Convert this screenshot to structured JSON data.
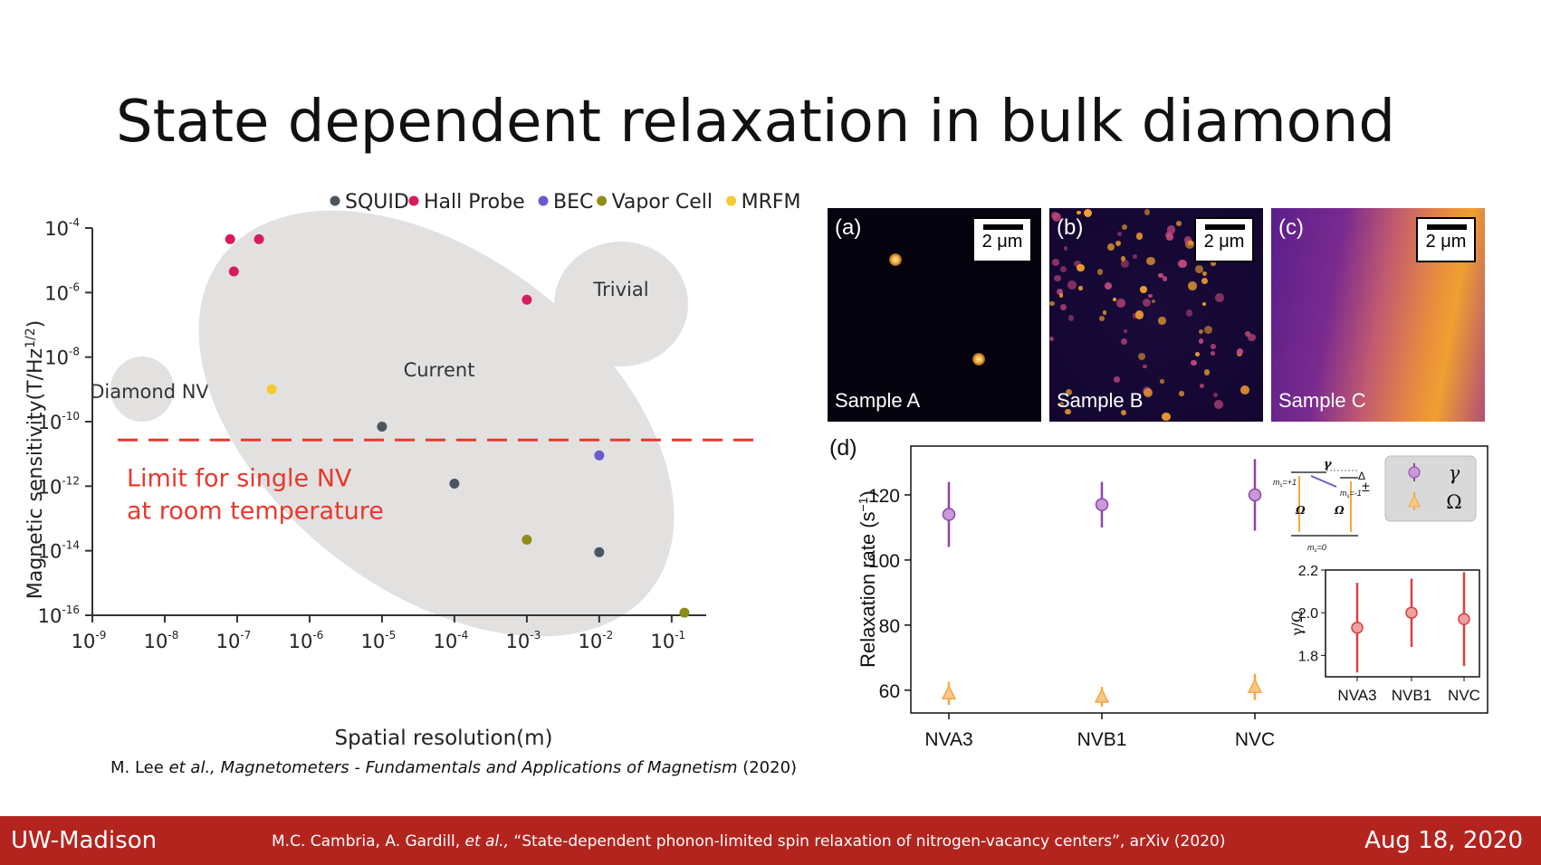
{
  "slide": {
    "title": "State dependent relaxation in bulk diamond",
    "left_citation_authors": "M. Lee ",
    "left_citation_etal": "et al., Magnetometers - Fundamentals and Applications of Magnetism",
    "left_citation_year": " (2020)"
  },
  "footer": {
    "left": "UW-Madison",
    "mid_prefix": "M.C. Cambria, A. Gardill, ",
    "mid_etal": "et al.,",
    "mid_suffix": " “State-dependent phonon-limited spin relaxation of nitrogen-vacancy centers”, arXiv (2020)",
    "right": "Aug 18, 2020"
  },
  "chart_data": [
    {
      "type": "scatter",
      "title": "",
      "xlabel": "Spatial resolution(m)",
      "ylabel": "Magnetic sensitivity(T/Hz",
      "ylabel_sup": "1/2",
      "ylabel_close": ")",
      "x_scale": "log",
      "y_scale": "log",
      "xlim": [
        1e-09,
        0.3
      ],
      "ylim": [
        1e-16,
        0.0001
      ],
      "x_tick_base": "10",
      "x_tick_exponents": [
        "-9",
        "-8",
        "-7",
        "-6",
        "-5",
        "-4",
        "-3",
        "-2",
        "-1"
      ],
      "y_tick_base": "10",
      "y_tick_exponents": [
        "-4",
        "-6",
        "-8",
        "-10",
        "-12",
        "-14",
        "-16"
      ],
      "legend_position": "top",
      "series": [
        {
          "name": "SQUID",
          "color": "#4b5560",
          "points": [
            [
              1e-05,
              7e-11
            ],
            [
              0.0001,
              1.2e-12
            ],
            [
              0.01,
              9e-15
            ]
          ]
        },
        {
          "name": "Hall Probe",
          "color": "#d81b60",
          "points": [
            [
              8e-08,
              4.5e-05
            ],
            [
              2e-07,
              4.5e-05
            ],
            [
              9e-08,
              4.5e-06
            ],
            [
              0.001,
              6e-07
            ]
          ]
        },
        {
          "name": "BEC",
          "color": "#6a5acd",
          "points": [
            [
              0.01,
              9e-12
            ]
          ]
        },
        {
          "name": "Vapor Cell",
          "color": "#8d8d1a",
          "points": [
            [
              0.001,
              2.2e-14
            ],
            [
              0.15,
              1.2e-16
            ]
          ]
        },
        {
          "name": "MRFM",
          "color": "#f2cc30",
          "points": [
            [
              3e-07,
              1e-09
            ]
          ]
        }
      ],
      "regions": [
        {
          "label": "Diamond NV"
        },
        {
          "label": "Current"
        },
        {
          "label": "Trivial"
        }
      ],
      "threshold": {
        "y": 2.7e-11,
        "color": "#e8392c",
        "label_line1": "Limit for single NV",
        "label_line2": "at room temperature"
      }
    },
    {
      "type": "scatter",
      "panel_label": "(d)",
      "title": "",
      "xlabel": "",
      "ylabel": "Relaxation rate (s",
      "ylabel_sup": "−1",
      "ylabel_close": ")",
      "categories": [
        "NVA3",
        "NVB1",
        "NVC"
      ],
      "ylim": [
        53,
        135
      ],
      "y_ticks": [
        60,
        80,
        100,
        120
      ],
      "legend_position": "top-right",
      "series": [
        {
          "name": "γ",
          "color": "#8e44ad",
          "marker": "circle",
          "values": [
            114,
            117,
            120
          ],
          "errors": [
            10,
            7,
            11
          ]
        },
        {
          "name": "Ω",
          "color": "#f5a742",
          "marker": "triangle",
          "values": [
            59,
            58,
            61
          ],
          "errors": [
            3.5,
            3,
            4
          ]
        }
      ],
      "level_diagram": {
        "gamma": "γ",
        "omega": "Ω",
        "delta": "Δ",
        "plus_minus": "±",
        "m_plus": "m",
        "m_plus_sub": "s",
        "m_plus_val": "=+1",
        "m_minus_val": "=-1",
        "m_zero_val": "=0"
      },
      "inset": {
        "type": "scatter",
        "ylabel": "γ/Ω",
        "categories": [
          "NVA3",
          "NVB1",
          "NVC"
        ],
        "ylim": [
          1.7,
          2.2
        ],
        "y_ticks": [
          1.8,
          2.0,
          2.2
        ],
        "series": [
          {
            "name": "",
            "color": "#e8676a",
            "values": [
              1.93,
              2.0,
              1.97
            ],
            "errors": [
              0.21,
              0.16,
              0.22
            ]
          }
        ]
      }
    }
  ],
  "micrographs": [
    {
      "panel": "(a)",
      "sample": "Sample A",
      "scale": "2 μm"
    },
    {
      "panel": "(b)",
      "sample": "Sample B",
      "scale": "2 μm"
    },
    {
      "panel": "(c)",
      "sample": "Sample C",
      "scale": "2 μm"
    }
  ],
  "colors": {
    "footer_bg": "#b4241f",
    "region_gray": "#e3e1e0",
    "limit_red": "#e8392c"
  }
}
